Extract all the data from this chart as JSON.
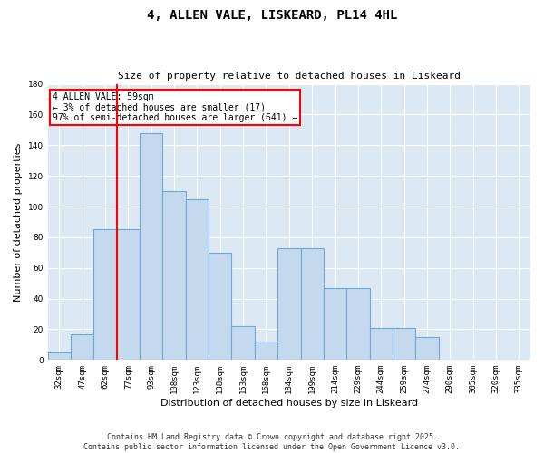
{
  "title1": "4, ALLEN VALE, LISKEARD, PL14 4HL",
  "title2": "Size of property relative to detached houses in Liskeard",
  "xlabel": "Distribution of detached houses by size in Liskeard",
  "ylabel": "Number of detached properties",
  "categories": [
    "32sqm",
    "47sqm",
    "62sqm",
    "77sqm",
    "93sqm",
    "108sqm",
    "123sqm",
    "138sqm",
    "153sqm",
    "168sqm",
    "184sqm",
    "199sqm",
    "214sqm",
    "229sqm",
    "244sqm",
    "259sqm",
    "274sqm",
    "290sqm",
    "305sqm",
    "320sqm",
    "335sqm"
  ],
  "values": [
    5,
    17,
    85,
    85,
    148,
    110,
    105,
    70,
    22,
    12,
    73,
    73,
    47,
    47,
    21,
    21,
    15,
    0,
    0,
    0,
    0
  ],
  "bar_color": "#c5d9ee",
  "bar_edge_color": "#6aaad4",
  "vline_x": 2.5,
  "vline_color": "red",
  "annotation_text": "4 ALLEN VALE: 59sqm\n← 3% of detached houses are smaller (17)\n97% of semi-detached houses are larger (641) →",
  "annotation_box_color": "red",
  "ylim": [
    0,
    180
  ],
  "yticks": [
    0,
    20,
    40,
    60,
    80,
    100,
    120,
    140,
    160,
    180
  ],
  "bg_color": "#dce9f5",
  "footer1": "Contains HM Land Registry data © Crown copyright and database right 2025.",
  "footer2": "Contains public sector information licensed under the Open Government Licence v3.0."
}
